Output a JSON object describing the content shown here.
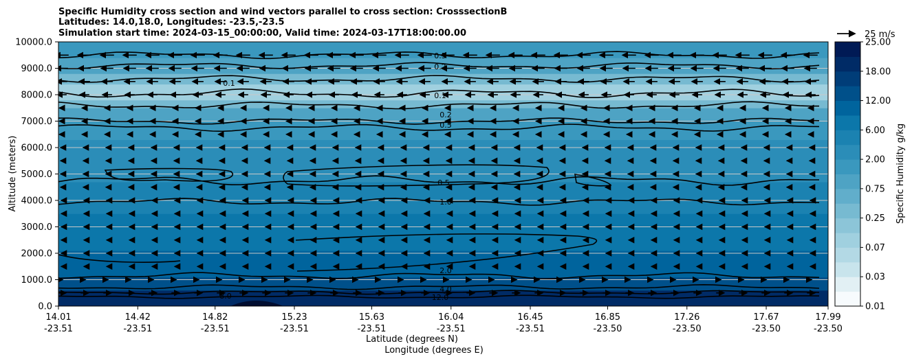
{
  "chart_data": {
    "type": "heatmap",
    "title_lines": [
      "Specific Humidity cross section and wind vectors parallel to cross section: CrosssectionB",
      "Latitudes: 14.0,18.0, Longitudes: -23.5,-23.5",
      "Simulation start time: 2024-03-15_00:00:00, Valid time: 2024-03-17T18:00:00.00"
    ],
    "ylabel": "Altitude (meters)",
    "xlabel_lines": [
      "Latitude (degrees N)",
      "Longitude (degrees E)"
    ],
    "ylim": [
      0,
      10000
    ],
    "y_ticks": [
      "0.0",
      "1000.0",
      "2000.0",
      "3000.0",
      "4000.0",
      "5000.0",
      "6000.0",
      "7000.0",
      "8000.0",
      "9000.0",
      "10000.0"
    ],
    "x_ticks": [
      {
        "lat": "14.01",
        "lon": "-23.51"
      },
      {
        "lat": "14.42",
        "lon": "-23.51"
      },
      {
        "lat": "14.82",
        "lon": "-23.51"
      },
      {
        "lat": "15.23",
        "lon": "-23.51"
      },
      {
        "lat": "15.63",
        "lon": "-23.51"
      },
      {
        "lat": "16.04",
        "lon": "-23.51"
      },
      {
        "lat": "16.45",
        "lon": "-23.51"
      },
      {
        "lat": "16.85",
        "lon": "-23.50"
      },
      {
        "lat": "17.26",
        "lon": "-23.50"
      },
      {
        "lat": "17.67",
        "lon": "-23.50"
      },
      {
        "lat": "17.99",
        "lon": "-23.50"
      }
    ],
    "grid": "horizontal",
    "colorbar": {
      "label": "Specific Humidity g/kg",
      "tick_labels": [
        "0.01",
        "0.03",
        "0.07",
        "0.25",
        "0.75",
        "2.00",
        "6.00",
        "12.00",
        "18.00",
        "25.00"
      ],
      "colors": [
        "#f7fbfd",
        "#e2f0f4",
        "#c8e4ec",
        "#b3d9e5",
        "#a0d0df",
        "#8cc5d8",
        "#77bad1",
        "#61aecb",
        "#4ea3c4",
        "#3a98be",
        "#2b8db8",
        "#1b82b1",
        "#0c77aa",
        "#00649d",
        "#00508a",
        "#003d78",
        "#002b66",
        "#001a55"
      ]
    },
    "quiver_key": {
      "label": "25 m/s"
    },
    "contours": [
      {
        "label": "12.0"
      },
      {
        "label": "8.0"
      },
      {
        "label": "4.0"
      },
      {
        "label": "2.0"
      },
      {
        "label": "1.0"
      },
      {
        "label": "0.5"
      },
      {
        "label": "0.2"
      },
      {
        "label": "0.1"
      }
    ]
  }
}
